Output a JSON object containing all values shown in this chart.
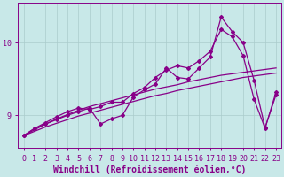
{
  "background_color": "#c8e8e8",
  "plot_bg_color": "#c8e8e8",
  "grid_color": "#aacccc",
  "line_color": "#880088",
  "xlabel": "Windchill (Refroidissement éolien,°C)",
  "xlabel_fontsize": 7,
  "tick_fontsize": 6,
  "ylim": [
    8.55,
    10.55
  ],
  "xlim": [
    -0.5,
    23.5
  ],
  "yticks": [
    9,
    10
  ],
  "xticks": [
    0,
    1,
    2,
    3,
    4,
    5,
    6,
    7,
    8,
    9,
    10,
    11,
    12,
    13,
    14,
    15,
    16,
    17,
    18,
    19,
    20,
    21,
    22,
    23
  ],
  "series1_x": [
    0,
    1,
    2,
    3,
    4,
    5,
    6,
    7,
    8,
    9,
    10,
    11,
    12,
    13,
    14,
    15,
    16,
    17,
    18,
    19,
    20,
    21,
    22,
    23
  ],
  "series1_y": [
    8.72,
    8.78,
    8.84,
    8.89,
    8.94,
    8.99,
    9.03,
    9.07,
    9.11,
    9.15,
    9.19,
    9.23,
    9.27,
    9.3,
    9.34,
    9.37,
    9.4,
    9.43,
    9.46,
    9.49,
    9.52,
    9.54,
    9.56,
    9.58
  ],
  "series2_x": [
    0,
    1,
    2,
    3,
    4,
    5,
    6,
    7,
    8,
    9,
    10,
    11,
    12,
    13,
    14,
    15,
    16,
    17,
    18,
    19,
    20,
    21,
    22,
    23
  ],
  "series2_y": [
    8.72,
    8.8,
    8.88,
    8.95,
    9.01,
    9.07,
    9.12,
    9.16,
    9.2,
    9.24,
    9.28,
    9.32,
    9.36,
    9.39,
    9.42,
    9.46,
    9.49,
    9.52,
    9.55,
    9.57,
    9.59,
    9.61,
    9.63,
    9.65
  ],
  "series3_x": [
    0,
    1,
    2,
    3,
    4,
    5,
    6,
    7,
    8,
    9,
    10,
    11,
    12,
    13,
    14,
    15,
    16,
    17,
    18,
    19,
    20,
    21,
    22,
    23
  ],
  "series3_y": [
    8.72,
    8.82,
    8.88,
    8.94,
    9.0,
    9.05,
    9.1,
    8.88,
    8.95,
    9.0,
    9.25,
    9.35,
    9.43,
    9.65,
    9.52,
    9.5,
    9.65,
    9.8,
    10.35,
    10.15,
    10.0,
    9.48,
    8.83,
    9.28
  ],
  "series4_x": [
    0,
    1,
    2,
    3,
    4,
    5,
    6,
    7,
    8,
    9,
    10,
    11,
    12,
    13,
    14,
    15,
    16,
    17,
    18,
    19,
    20,
    21,
    22,
    23
  ],
  "series4_y": [
    8.72,
    8.82,
    8.9,
    8.98,
    9.05,
    9.1,
    9.08,
    9.12,
    9.18,
    9.18,
    9.3,
    9.38,
    9.52,
    9.62,
    9.68,
    9.65,
    9.75,
    9.88,
    10.18,
    10.08,
    9.82,
    9.22,
    8.82,
    9.32
  ],
  "marker": "D",
  "markersize": 2.0,
  "linewidth": 0.9
}
